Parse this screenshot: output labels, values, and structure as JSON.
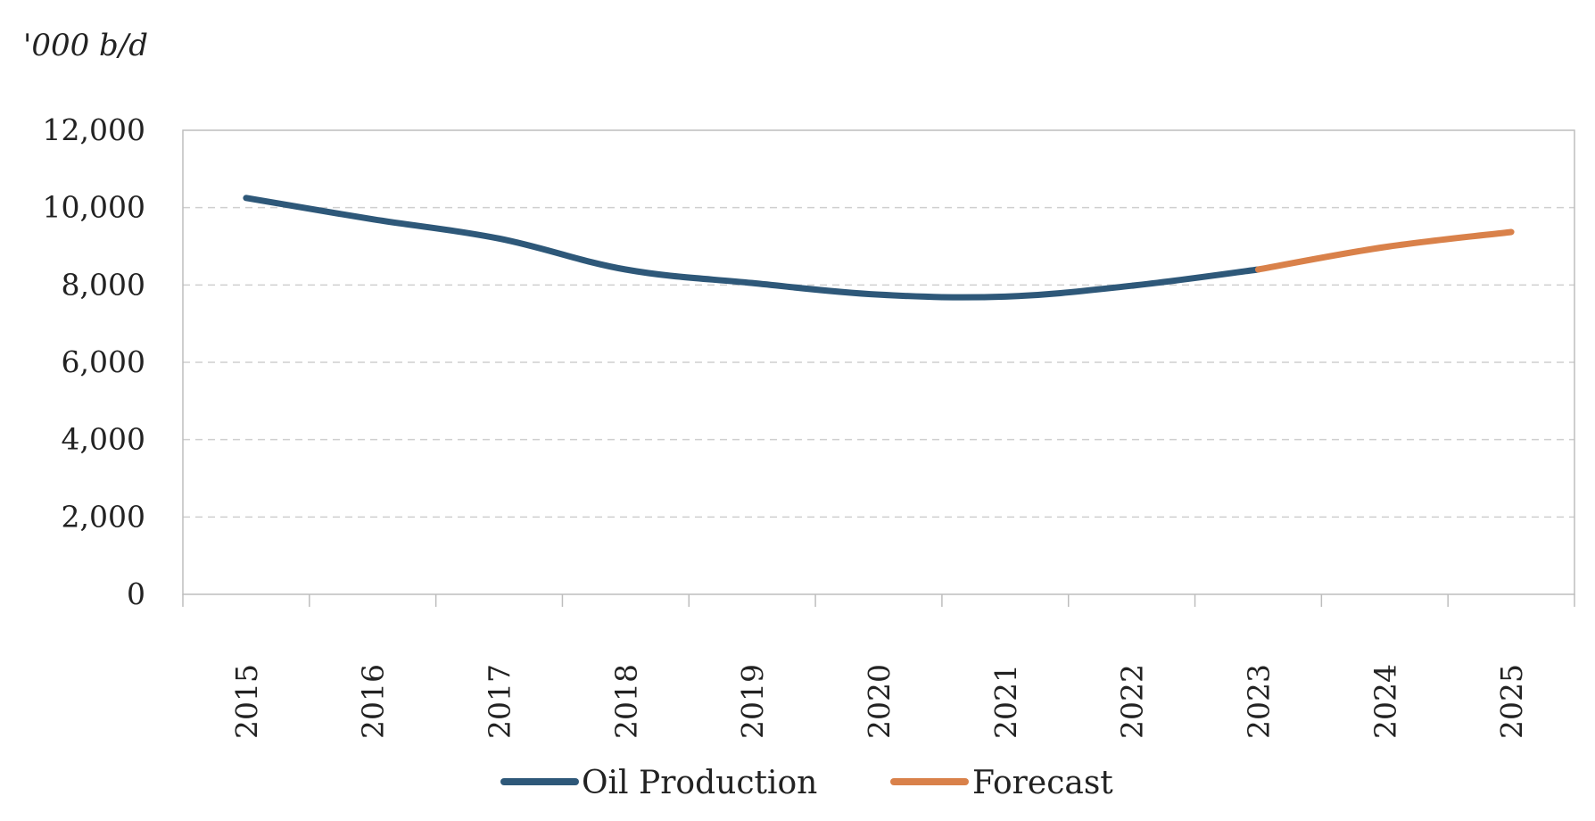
{
  "chart_data": {
    "type": "line",
    "ylabel": "'000 b/d",
    "xlabel": "",
    "title": "",
    "ylim": [
      0,
      12000
    ],
    "yticks": [
      0,
      2000,
      4000,
      6000,
      8000,
      10000,
      12000
    ],
    "ytick_labels": [
      "0",
      "2,000",
      "4,000",
      "6,000",
      "8,000",
      "10,000",
      "12,000"
    ],
    "categories": [
      "2015",
      "2016",
      "2017",
      "2018",
      "2019",
      "2020",
      "2021",
      "2022",
      "2023",
      "2024",
      "2025"
    ],
    "grid": true,
    "legend_position": "bottom-center",
    "series": [
      {
        "name": "Oil Production",
        "color": "#2e5879",
        "values": [
          10250,
          9700,
          9200,
          8400,
          8050,
          7750,
          7700,
          7980,
          8400,
          null,
          null
        ]
      },
      {
        "name": "Forecast",
        "color": "#d9814a",
        "values": [
          null,
          null,
          null,
          null,
          null,
          null,
          null,
          null,
          8400,
          8980,
          9370
        ]
      }
    ]
  }
}
